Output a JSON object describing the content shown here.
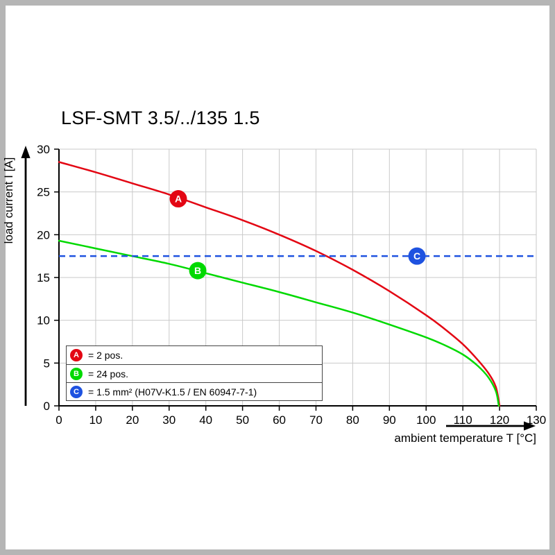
{
  "page": {
    "background": "#ffffff",
    "frame_color": "#b5b5b5"
  },
  "chart_data": {
    "type": "line",
    "title": "LSF-SMT 3.5/../135 1.5",
    "xlabel": "ambient temperature T [°C]",
    "ylabel": "load current I [A]",
    "xlim": [
      0,
      130
    ],
    "ylim": [
      0,
      30
    ],
    "x_ticks": [
      0,
      10,
      20,
      30,
      40,
      50,
      60,
      70,
      80,
      90,
      100,
      110,
      120,
      130
    ],
    "y_ticks": [
      0,
      5,
      10,
      15,
      20,
      25,
      30
    ],
    "grid": true,
    "legend_position": "lower left",
    "series": [
      {
        "name": "A",
        "label": "= 2 pos.",
        "color": "#e30613",
        "style": "solid",
        "marker": [
          32.5,
          24.2
        ],
        "points": [
          [
            0,
            28.5
          ],
          [
            10,
            27.3
          ],
          [
            20,
            26.0
          ],
          [
            30,
            24.7
          ],
          [
            40,
            23.2
          ],
          [
            50,
            21.7
          ],
          [
            60,
            20.0
          ],
          [
            70,
            18.1
          ],
          [
            80,
            15.9
          ],
          [
            90,
            13.4
          ],
          [
            100,
            10.6
          ],
          [
            105,
            9.0
          ],
          [
            110,
            7.2
          ],
          [
            114,
            5.4
          ],
          [
            117,
            3.8
          ],
          [
            119,
            2.2
          ],
          [
            120,
            0
          ]
        ]
      },
      {
        "name": "B",
        "label": "= 24 pos.",
        "color": "#00d900",
        "style": "solid",
        "marker": [
          37.8,
          15.8
        ],
        "points": [
          [
            0,
            19.3
          ],
          [
            10,
            18.4
          ],
          [
            20,
            17.5
          ],
          [
            30,
            16.6
          ],
          [
            40,
            15.5
          ],
          [
            50,
            14.4
          ],
          [
            60,
            13.3
          ],
          [
            70,
            12.1
          ],
          [
            80,
            10.9
          ],
          [
            90,
            9.5
          ],
          [
            100,
            8.0
          ],
          [
            105,
            7.1
          ],
          [
            110,
            6.0
          ],
          [
            114,
            4.7
          ],
          [
            117,
            3.3
          ],
          [
            119,
            1.7
          ],
          [
            119.8,
            0
          ]
        ]
      },
      {
        "name": "C",
        "label": "= 1.5 mm² (H07V-K1.5 / EN 60947-7-1)",
        "color": "#1e52e0",
        "style": "dashed",
        "marker": [
          97.5,
          17.5
        ],
        "points": [
          [
            0,
            17.5
          ],
          [
            130,
            17.5
          ]
        ]
      }
    ]
  }
}
